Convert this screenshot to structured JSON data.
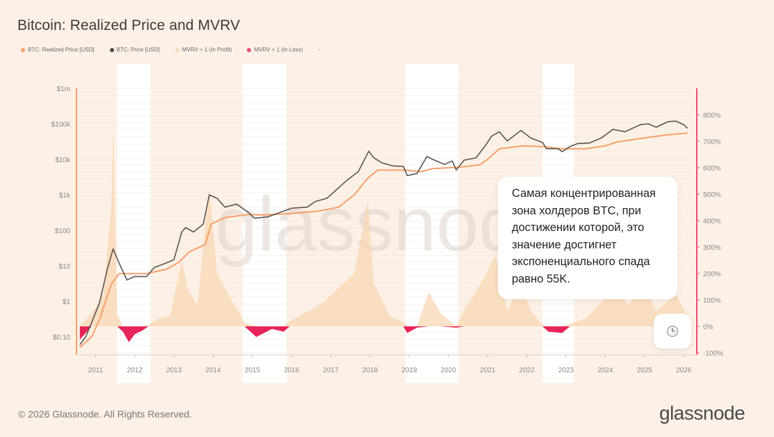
{
  "chart_data": {
    "type": "line",
    "title": "Bitcoin: Realized Price and MVRV",
    "legend": [
      {
        "label": "BTC: Realized Price [USD]",
        "color": "#f6a06a"
      },
      {
        "label": "BTC: Price [USD]",
        "color": "#4a4a4a"
      },
      {
        "label": "MVRV > 1 (In Profit)",
        "color": "#f7dcc0"
      },
      {
        "label": "MVRV < 1 (In Loss)",
        "color": "#ee4a7a"
      },
      {
        "label": "-",
        "color": "transparent"
      }
    ],
    "x_ticks": [
      "2011",
      "2012",
      "2013",
      "2014",
      "2015",
      "2016",
      "2017",
      "2018",
      "2019",
      "2020",
      "2021",
      "2022",
      "2023",
      "2024",
      "2025",
      "2026"
    ],
    "x_range": [
      2010.55,
      2026.3
    ],
    "y_left_ticks": [
      "$1m",
      "$100k",
      "$10k",
      "$1k",
      "$100",
      "$10",
      "$1",
      "$0.10"
    ],
    "y_left_log_range": [
      -1.45,
      6
    ],
    "y_right_ticks": [
      "800%",
      "700%",
      "600%",
      "500%",
      "400%",
      "300%",
      "200%",
      "100%",
      "0%",
      "-100%"
    ],
    "y_right_range": [
      -100,
      900
    ],
    "highlight_bands": [
      [
        2011.55,
        2012.4
      ],
      [
        2014.75,
        2015.87
      ],
      [
        2018.9,
        2020.25
      ],
      [
        2022.4,
        2023.2
      ]
    ],
    "price_series": {
      "name": "BTC: Price [USD]",
      "points": [
        [
          2010.6,
          0.06
        ],
        [
          2010.75,
          0.1
        ],
        [
          2010.9,
          0.25
        ],
        [
          2011.1,
          0.9
        ],
        [
          2011.3,
          8
        ],
        [
          2011.45,
          30
        ],
        [
          2011.6,
          12
        ],
        [
          2011.8,
          4
        ],
        [
          2012.0,
          5
        ],
        [
          2012.3,
          5
        ],
        [
          2012.5,
          9
        ],
        [
          2012.8,
          12
        ],
        [
          2013.0,
          15
        ],
        [
          2013.2,
          90
        ],
        [
          2013.3,
          120
        ],
        [
          2013.5,
          90
        ],
        [
          2013.75,
          150
        ],
        [
          2013.9,
          1000
        ],
        [
          2014.1,
          800
        ],
        [
          2014.3,
          450
        ],
        [
          2014.6,
          550
        ],
        [
          2014.9,
          320
        ],
        [
          2015.05,
          220
        ],
        [
          2015.4,
          240
        ],
        [
          2015.8,
          350
        ],
        [
          2016.0,
          420
        ],
        [
          2016.4,
          450
        ],
        [
          2016.6,
          650
        ],
        [
          2016.9,
          800
        ],
        [
          2017.0,
          1000
        ],
        [
          2017.4,
          2500
        ],
        [
          2017.7,
          4500
        ],
        [
          2017.97,
          17000
        ],
        [
          2018.1,
          11000
        ],
        [
          2018.3,
          8000
        ],
        [
          2018.6,
          6500
        ],
        [
          2018.85,
          6300
        ],
        [
          2018.95,
          3500
        ],
        [
          2019.2,
          4000
        ],
        [
          2019.45,
          12000
        ],
        [
          2019.6,
          10000
        ],
        [
          2019.9,
          7200
        ],
        [
          2020.1,
          9000
        ],
        [
          2020.2,
          5000
        ],
        [
          2020.4,
          9500
        ],
        [
          2020.7,
          11000
        ],
        [
          2020.95,
          25000
        ],
        [
          2021.1,
          45000
        ],
        [
          2021.3,
          60000
        ],
        [
          2021.5,
          33000
        ],
        [
          2021.85,
          65000
        ],
        [
          2022.1,
          40000
        ],
        [
          2022.4,
          30000
        ],
        [
          2022.5,
          20000
        ],
        [
          2022.8,
          20000
        ],
        [
          2022.9,
          16500
        ],
        [
          2023.1,
          23000
        ],
        [
          2023.3,
          28000
        ],
        [
          2023.6,
          29000
        ],
        [
          2023.9,
          40000
        ],
        [
          2024.2,
          70000
        ],
        [
          2024.5,
          60000
        ],
        [
          2024.9,
          95000
        ],
        [
          2025.1,
          100000
        ],
        [
          2025.3,
          80000
        ],
        [
          2025.6,
          115000
        ],
        [
          2025.8,
          120000
        ],
        [
          2026.0,
          95000
        ],
        [
          2026.1,
          75000
        ]
      ]
    },
    "realized_price_series": {
      "name": "BTC: Realized Price [USD]",
      "points": [
        [
          2010.6,
          0.05
        ],
        [
          2010.9,
          0.1
        ],
        [
          2011.1,
          0.3
        ],
        [
          2011.4,
          3
        ],
        [
          2011.6,
          6
        ],
        [
          2011.9,
          6
        ],
        [
          2012.3,
          6
        ],
        [
          2012.8,
          8
        ],
        [
          2013.1,
          12
        ],
        [
          2013.4,
          25
        ],
        [
          2013.8,
          40
        ],
        [
          2013.95,
          150
        ],
        [
          2014.3,
          230
        ],
        [
          2014.9,
          280
        ],
        [
          2015.3,
          270
        ],
        [
          2016.0,
          300
        ],
        [
          2016.7,
          350
        ],
        [
          2017.2,
          450
        ],
        [
          2017.6,
          1000
        ],
        [
          2017.95,
          3000
        ],
        [
          2018.2,
          5000
        ],
        [
          2018.9,
          5000
        ],
        [
          2019.3,
          4500
        ],
        [
          2019.6,
          5500
        ],
        [
          2020.3,
          6000
        ],
        [
          2020.8,
          7000
        ],
        [
          2021.0,
          10000
        ],
        [
          2021.3,
          20000
        ],
        [
          2021.9,
          24000
        ],
        [
          2022.4,
          23000
        ],
        [
          2022.9,
          20000
        ],
        [
          2023.5,
          20000
        ],
        [
          2024.0,
          24000
        ],
        [
          2024.3,
          31000
        ],
        [
          2025.0,
          40000
        ],
        [
          2025.5,
          48000
        ],
        [
          2026.1,
          55000
        ]
      ]
    },
    "mvrv_series": {
      "name": "MVRV",
      "unit": "%",
      "points": [
        [
          2010.6,
          -50
        ],
        [
          2010.9,
          50
        ],
        [
          2011.2,
          120
        ],
        [
          2011.4,
          450
        ],
        [
          2011.45,
          770
        ],
        [
          2011.55,
          50
        ],
        [
          2011.7,
          -20
        ],
        [
          2011.85,
          -60
        ],
        [
          2012.0,
          -30
        ],
        [
          2012.2,
          -15
        ],
        [
          2012.35,
          5
        ],
        [
          2012.6,
          30
        ],
        [
          2012.9,
          40
        ],
        [
          2013.2,
          250
        ],
        [
          2013.35,
          140
        ],
        [
          2013.6,
          80
        ],
        [
          2013.9,
          530
        ],
        [
          2014.1,
          200
        ],
        [
          2014.5,
          90
        ],
        [
          2014.8,
          15
        ],
        [
          2015.1,
          -40
        ],
        [
          2015.5,
          -10
        ],
        [
          2015.8,
          -20
        ],
        [
          2015.95,
          20
        ],
        [
          2016.4,
          55
        ],
        [
          2016.8,
          90
        ],
        [
          2017.3,
          160
        ],
        [
          2017.6,
          200
        ],
        [
          2017.95,
          480
        ],
        [
          2018.1,
          160
        ],
        [
          2018.5,
          40
        ],
        [
          2018.85,
          15
        ],
        [
          2018.95,
          -25
        ],
        [
          2019.2,
          -5
        ],
        [
          2019.5,
          130
        ],
        [
          2019.8,
          50
        ],
        [
          2020.2,
          -5
        ],
        [
          2020.4,
          60
        ],
        [
          2020.9,
          180
        ],
        [
          2021.2,
          270
        ],
        [
          2021.5,
          60
        ],
        [
          2021.85,
          150
        ],
        [
          2022.1,
          60
        ],
        [
          2022.4,
          5
        ],
        [
          2022.55,
          -20
        ],
        [
          2022.9,
          -25
        ],
        [
          2023.1,
          10
        ],
        [
          2023.5,
          30
        ],
        [
          2023.9,
          90
        ],
        [
          2024.2,
          150
        ],
        [
          2024.6,
          80
        ],
        [
          2024.95,
          160
        ],
        [
          2025.3,
          60
        ],
        [
          2025.8,
          120
        ],
        [
          2026.1,
          40
        ]
      ]
    },
    "watermark": "glassnode"
  },
  "callout_text": "Самая концентрированная зона холдеров BTC, при достижении которой, это значение достигнет экспоненциального спада равно 55K.",
  "footer": "© 2026 Glassnode. All Rights Reserved.",
  "brand": "glassnode"
}
